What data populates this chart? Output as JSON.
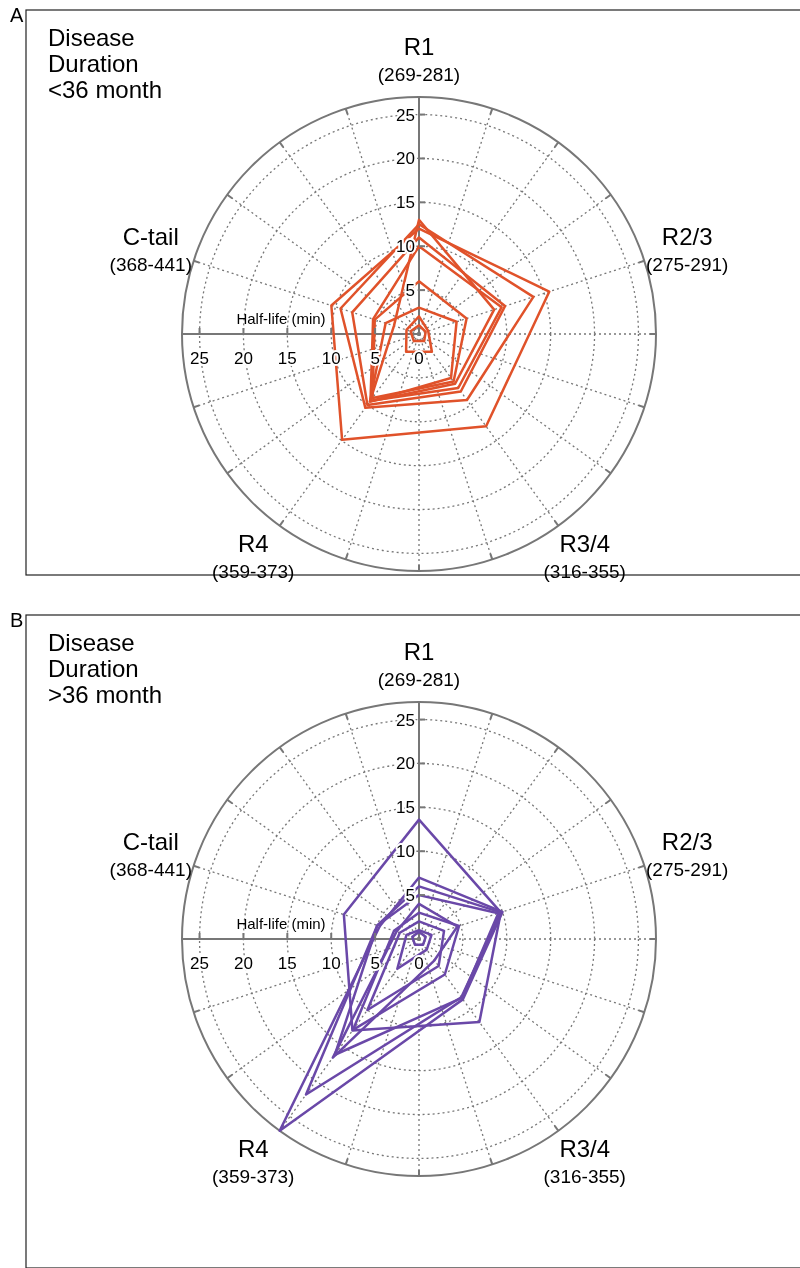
{
  "chart_data": [
    {
      "type": "radar",
      "title": "Disease Duration <36 month",
      "ylabel": "Half-life (min)",
      "annotations": [
        "A",
        "25",
        "20",
        "15",
        "10",
        "5",
        "0"
      ],
      "categories": [
        "R1 (269-281)",
        "R2/3 (275-291)",
        "R3/4 (316-355)",
        "R4 (359-373)",
        "C-tail (368-441)"
      ],
      "ylim": [
        0,
        27
      ],
      "yticks": [
        5,
        10,
        15,
        20,
        25
      ],
      "grid": true,
      "series": [
        {
          "color": "#e0522a",
          "values": [
            12,
            15.6,
            13,
            14.9,
            10.5
          ]
        },
        {
          "color": "#e0522a",
          "values": [
            12.5,
            13.7,
            9.3,
            10.4,
            9.4
          ]
        },
        {
          "color": "#e0522a",
          "values": [
            11,
            10.3,
            8.1,
            10,
            8
          ]
        },
        {
          "color": "#e0522a",
          "values": [
            10,
            9.9,
            7.6,
            9.4,
            5.5
          ]
        },
        {
          "color": "#e0522a",
          "values": [
            13,
            9,
            7,
            9.5,
            3
          ]
        },
        {
          "color": "#e0522a",
          "values": [
            6,
            5.7,
            6.7,
            9,
            5.3
          ]
        },
        {
          "color": "#e0522a",
          "values": [
            3,
            4.5,
            6.2,
            9.5,
            4
          ]
        },
        {
          "color": "#e0522a",
          "values": [
            2,
            1.1,
            2.5,
            2.5,
            1.5
          ]
        },
        {
          "color": "#e0522a",
          "values": [
            1,
            0.8,
            1,
            1,
            1
          ]
        }
      ]
    },
    {
      "type": "radar",
      "title": "Disease Duration >36 month",
      "ylabel": "Half-life (min)",
      "annotations": [
        "B",
        "25",
        "20",
        "15",
        "10",
        "5",
        "0"
      ],
      "categories": [
        "R1 (269-281)",
        "R2/3 (275-291)",
        "R3/4 (316-355)",
        "R4 (359-373)",
        "C-tail (368-441)"
      ],
      "ylim": [
        0,
        27
      ],
      "yticks": [
        5,
        10,
        15,
        20,
        25
      ],
      "grid": true,
      "series": [
        {
          "color": "#6a48a8",
          "values": [
            13.6,
            9.8,
            11.7,
            12.9,
            9
          ]
        },
        {
          "color": "#6a48a8",
          "values": [
            7,
            10,
            8.5,
            27,
            4.7
          ]
        },
        {
          "color": "#6a48a8",
          "values": [
            6,
            9.8,
            8.2,
            21.9,
            5
          ]
        },
        {
          "color": "#6a48a8",
          "values": [
            5,
            9.5,
            8.3,
            16.3,
            5
          ]
        },
        {
          "color": "#6a48a8",
          "values": [
            4,
            4.6,
            3,
            16.7,
            2.7
          ]
        },
        {
          "color": "#6a48a8",
          "values": [
            3,
            4.8,
            5,
            12.8,
            3
          ]
        },
        {
          "color": "#6a48a8",
          "values": [
            2,
            3,
            3.8,
            10,
            2.3
          ]
        },
        {
          "color": "#6a48a8",
          "values": [
            1,
            1.5,
            1.5,
            4.2,
            1.5
          ]
        },
        {
          "color": "#6a48a8",
          "values": [
            0.8,
            0.8,
            0.8,
            0.8,
            0.8
          ]
        }
      ]
    }
  ]
}
